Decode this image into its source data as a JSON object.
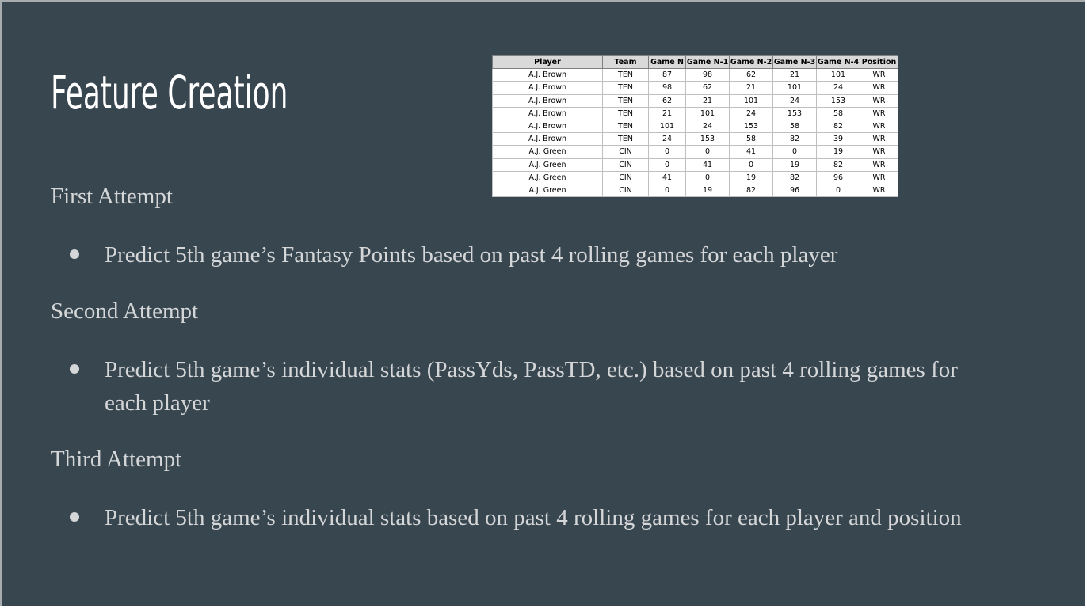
{
  "slide": {
    "title": "Feature Creation",
    "sections": [
      {
        "heading": "First Attempt",
        "bullet": "Predict 5th game’s Fantasy Points based on  past 4 rolling games for each player"
      },
      {
        "heading": "Second Attempt",
        "bullet": "Predict 5th game’s individual stats (PassYds, PassTD, etc.)  based on past 4 rolling games for each player"
      },
      {
        "heading": "Third Attempt",
        "bullet": "Predict 5th game’s individual stats based on past 4 rolling games for each player and position"
      }
    ]
  },
  "table": {
    "headers": [
      "Player",
      "Team",
      "Game N",
      "Game N-1",
      "Game N-2",
      "Game N-3",
      "Game N-4",
      "Position"
    ],
    "rows": [
      [
        "A.J. Brown",
        "TEN",
        "87",
        "98",
        "62",
        "21",
        "101",
        "WR"
      ],
      [
        "A.J. Brown",
        "TEN",
        "98",
        "62",
        "21",
        "101",
        "24",
        "WR"
      ],
      [
        "A.J. Brown",
        "TEN",
        "62",
        "21",
        "101",
        "24",
        "153",
        "WR"
      ],
      [
        "A.J. Brown",
        "TEN",
        "21",
        "101",
        "24",
        "153",
        "58",
        "WR"
      ],
      [
        "A.J. Brown",
        "TEN",
        "101",
        "24",
        "153",
        "58",
        "82",
        "WR"
      ],
      [
        "A.J. Brown",
        "TEN",
        "24",
        "153",
        "58",
        "82",
        "39",
        "WR"
      ],
      [
        "A.J. Green",
        "CIN",
        "0",
        "0",
        "41",
        "0",
        "19",
        "WR"
      ],
      [
        "A.J. Green",
        "CIN",
        "0",
        "41",
        "0",
        "19",
        "82",
        "WR"
      ],
      [
        "A.J. Green",
        "CIN",
        "41",
        "0",
        "19",
        "82",
        "96",
        "WR"
      ],
      [
        "A.J. Green",
        "CIN",
        "0",
        "19",
        "82",
        "96",
        "0",
        "WR"
      ]
    ]
  }
}
